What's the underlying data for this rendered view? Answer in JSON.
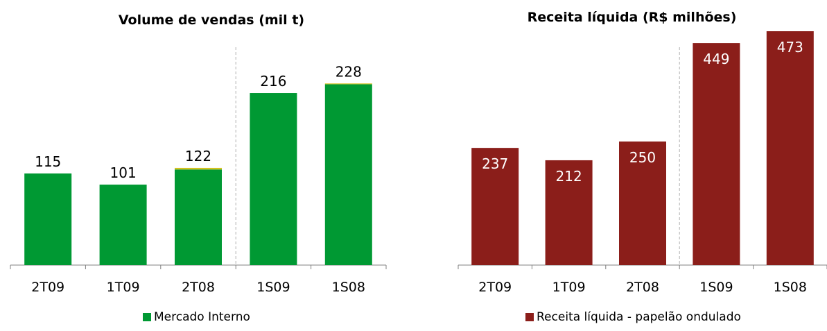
{
  "chart_data": [
    {
      "type": "bar",
      "title": "Volume de vendas (mil t)",
      "categories": [
        "2T09",
        "1T09",
        "2T08",
        "1S09",
        "1S08"
      ],
      "series": [
        {
          "name": "Mercado Interno",
          "values": [
            115,
            101,
            120,
            216,
            227
          ]
        },
        {
          "name": "",
          "values": [
            0,
            0,
            2,
            0,
            1
          ]
        }
      ],
      "totals": [
        115,
        101,
        122,
        216,
        228
      ],
      "ylim": [
        0,
        250
      ],
      "legend": "bottom",
      "colors": {
        "bar": "#009933",
        "top": "#d4c21f"
      },
      "divider_after_index": 2
    },
    {
      "type": "bar",
      "title": "Receita líquida (R$ milhões)",
      "categories": [
        "2T09",
        "1T09",
        "2T08",
        "1S09",
        "1S08"
      ],
      "series": [
        {
          "name": "Receita líquida - papelão ondulado",
          "values": [
            237,
            212,
            250,
            449,
            473
          ]
        }
      ],
      "ylim": [
        0,
        473
      ],
      "legend": "bottom",
      "colors": {
        "bar": "#8b1e1a"
      },
      "divider_after_index": 2
    }
  ]
}
